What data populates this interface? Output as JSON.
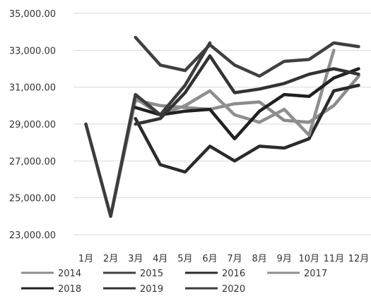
{
  "chart_data": {
    "type": "line",
    "title": "",
    "xlabel": "",
    "ylabel": "",
    "categories": [
      "1月",
      "2月",
      "3月",
      "4月",
      "5月",
      "6月",
      "7月",
      "8月",
      "9月",
      "10月",
      "11月",
      "12月"
    ],
    "ylim": [
      23000,
      35000
    ],
    "y_ticks": [
      "23,000.00",
      "25,000.00",
      "27,000.00",
      "29,000.00",
      "31,000.00",
      "33,000.00",
      "35,000.00"
    ],
    "y_tick_values": [
      23000,
      25000,
      27000,
      29000,
      31000,
      33000,
      35000
    ],
    "grid": "horizontal",
    "legend_position": "bottom",
    "series": [
      {
        "name": "2014",
        "color": "#8c8c8c",
        "values": [
          29000,
          24000,
          30300,
          30000,
          29900,
          29800,
          30100,
          30200,
          29200,
          29100,
          30000,
          31600
        ]
      },
      {
        "name": "2015",
        "color": "#404040",
        "values": [
          null,
          null,
          33700,
          32200,
          31900,
          33300,
          32200,
          31600,
          32400,
          32500,
          33400,
          33200
        ]
      },
      {
        "name": "2016",
        "color": "#2b2b2b",
        "values": [
          null,
          null,
          29300,
          26800,
          26400,
          27800,
          27000,
          27800,
          27700,
          28200,
          30800,
          31100
        ]
      },
      {
        "name": "2017",
        "color": "#8f8f8f",
        "values": [
          null,
          null,
          30400,
          29500,
          30000,
          30800,
          29500,
          29100,
          29800,
          28400,
          33000,
          null
        ]
      },
      {
        "name": "2018",
        "color": "#202020",
        "values": [
          null,
          null,
          29900,
          29500,
          29700,
          29800,
          28200,
          29700,
          30600,
          30500,
          31500,
          32000
        ]
      },
      {
        "name": "2019",
        "color": "#333333",
        "values": [
          null,
          null,
          29000,
          29300,
          30700,
          32700,
          30700,
          30900,
          31200,
          31700,
          32000,
          31700
        ]
      },
      {
        "name": "2020",
        "color": "#3c3c3c",
        "values": [
          29000,
          24000,
          30600,
          29500,
          31100,
          33400,
          null,
          null,
          null,
          null,
          null,
          null
        ]
      }
    ]
  }
}
